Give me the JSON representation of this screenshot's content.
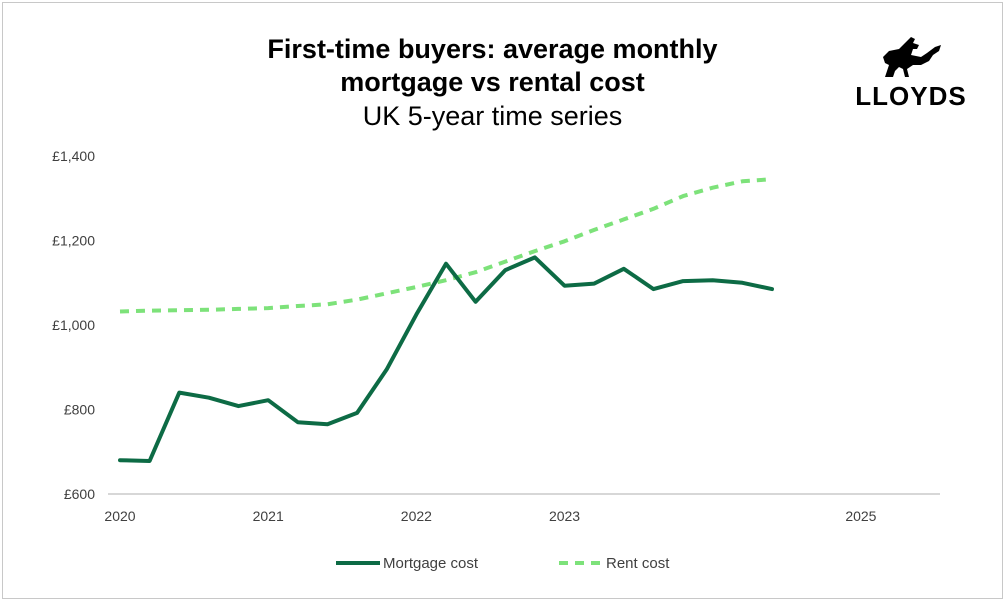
{
  "brand": {
    "name": "LLOYDS"
  },
  "colors": {
    "mortgage": "#0d6b45",
    "rent": "#7de27a",
    "axis": "#bfbfbf",
    "text": "#404040"
  },
  "chart_data": {
    "type": "line",
    "title": "First-time buyers: average monthly",
    "title_line2": "mortgage vs rental cost",
    "subtitle": "UK 5-year time series",
    "xlabel": "",
    "ylabel": "",
    "x_ticks": [
      "2020",
      "2021",
      "2022",
      "2023",
      "2025"
    ],
    "x_tick_values": [
      2020.0,
      2021.0,
      2022.0,
      2023.0,
      2025.0
    ],
    "y_ticks": [
      "£600",
      "£800",
      "£1,000",
      "£1,200",
      "£1,400"
    ],
    "y_tick_values": [
      600,
      800,
      1000,
      1200,
      1400
    ],
    "xlim": [
      2020.0,
      2025.5
    ],
    "ylim": [
      600,
      1400
    ],
    "grid": false,
    "legend_position": "bottom",
    "series": [
      {
        "name": "Mortgage cost",
        "style": "solid",
        "x": [
          2020.0,
          2020.2,
          2020.4,
          2020.6,
          2020.8,
          2021.0,
          2021.2,
          2021.4,
          2021.6,
          2021.8,
          2022.0,
          2022.2,
          2022.4,
          2022.6,
          2022.8,
          2023.0,
          2023.2,
          2023.4,
          2023.6,
          2023.8,
          2024.0,
          2024.2,
          2024.4
        ],
        "values": [
          680,
          678,
          840,
          828,
          808,
          822,
          770,
          765,
          792,
          895,
          1025,
          1145,
          1055,
          1130,
          1160,
          1093,
          1098,
          1133,
          1085,
          1104,
          1106,
          1100,
          1085
        ]
      },
      {
        "name": "Rent cost",
        "style": "dashed",
        "x": [
          2020.0,
          2020.2,
          2020.4,
          2020.6,
          2020.8,
          2021.0,
          2021.2,
          2021.4,
          2021.6,
          2021.8,
          2022.0,
          2022.2,
          2022.4,
          2022.6,
          2022.8,
          2023.0,
          2023.2,
          2023.4,
          2023.6,
          2023.8,
          2024.0,
          2024.2,
          2024.4
        ],
        "values": [
          1032,
          1034,
          1035,
          1036,
          1038,
          1040,
          1045,
          1049,
          1060,
          1075,
          1090,
          1106,
          1125,
          1150,
          1175,
          1198,
          1225,
          1250,
          1275,
          1305,
          1325,
          1340,
          1345
        ]
      }
    ]
  }
}
